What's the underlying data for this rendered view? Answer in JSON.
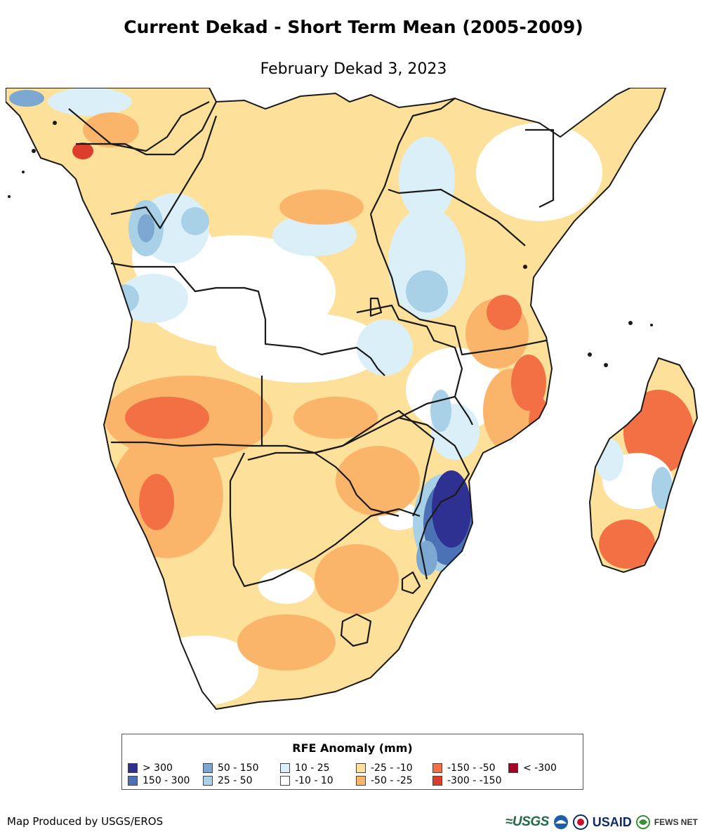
{
  "title": "Current Dekad - Short Term Mean (2005-2009)",
  "subtitle": "February Dekad 3, 2023",
  "legend": {
    "title": "RFE Anomaly (mm)",
    "classes": [
      {
        "label": "> 300",
        "color": "#2e3192"
      },
      {
        "label": "150 - 300",
        "color": "#4a72b5"
      },
      {
        "label": "50 - 150",
        "color": "#7ba7d1"
      },
      {
        "label": "25 - 50",
        "color": "#a8d1e7"
      },
      {
        "label": "10 - 25",
        "color": "#dbeff8"
      },
      {
        "label": "-10 - 10",
        "color": "#ffffff"
      },
      {
        "label": "-25 - -10",
        "color": "#fde09a"
      },
      {
        "label": "-50 - -25",
        "color": "#fbb56a"
      },
      {
        "label": "-150 - -50",
        "color": "#f36f44"
      },
      {
        "label": "-300 - -150",
        "color": "#dd3d2d"
      },
      {
        "label": "< -300",
        "color": "#a50026"
      }
    ]
  },
  "credit": "Map Produced by USGS/EROS",
  "logos": {
    "usgs": "≈USGS",
    "usaid": "USAID",
    "fews": "FEWS NET",
    "noaa_icon": "noaa-logo-icon",
    "usaid_seal_icon": "usaid-seal-icon",
    "fews_icon": "fews-globe-icon"
  }
}
